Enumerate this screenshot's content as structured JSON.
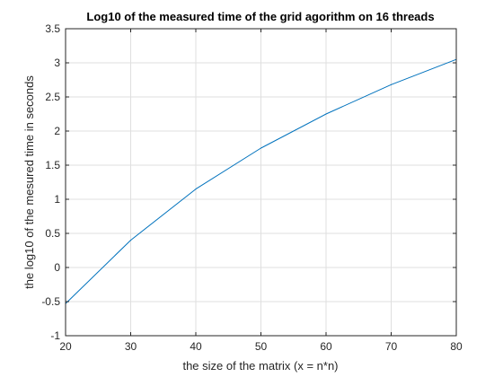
{
  "chart_data": {
    "type": "line",
    "title": "Log10 of the measured time of the grid agorithm on 16 threads",
    "xlabel": "the size of the matrix (x = n*n)",
    "ylabel": "the log10 of the mesured time in seconds",
    "xlim": [
      20,
      80
    ],
    "ylim": [
      -1,
      3.5
    ],
    "xticks": [
      "20",
      "30",
      "40",
      "50",
      "60",
      "70",
      "80"
    ],
    "yticks": [
      "-1",
      "-0.5",
      "0",
      "0.5",
      "1",
      "1.5",
      "2",
      "2.5",
      "3",
      "3.5"
    ],
    "grid": true,
    "series": [
      {
        "color": "#0072BD",
        "x": [
          20,
          30,
          40,
          50,
          60,
          70,
          80
        ],
        "y": [
          -0.53,
          0.4,
          1.15,
          1.75,
          2.25,
          2.68,
          3.05
        ]
      }
    ]
  }
}
